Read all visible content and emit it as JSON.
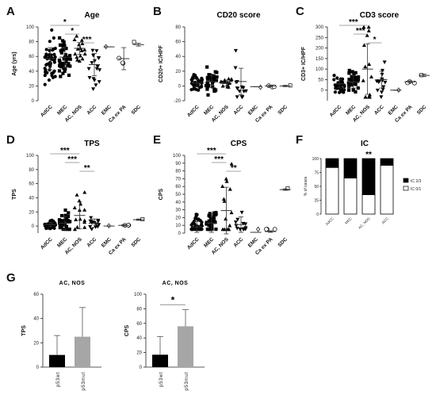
{
  "chart_data": [
    {
      "id": "A",
      "type": "scatter",
      "title": "Age",
      "ylabel": "Age (yrs)",
      "ylim": [
        0,
        100
      ],
      "yticks": [
        0,
        20,
        40,
        60,
        80,
        100
      ],
      "categories": [
        "AdCC",
        "MEC",
        "AC, NOS",
        "ACC",
        "EMC",
        "Ca ex PA",
        "SDC"
      ],
      "means": [
        57,
        59,
        71,
        49,
        73,
        57,
        76
      ],
      "sd": [
        15,
        14,
        8,
        15,
        0,
        15,
        2
      ],
      "n": [
        50,
        42,
        16,
        18,
        1,
        3,
        1
      ],
      "significance": [
        {
          "from": 0,
          "to": 2,
          "label": "*"
        },
        {
          "from": 1,
          "to": 2,
          "label": "*"
        },
        {
          "from": 2,
          "to": 3,
          "label": "***"
        }
      ]
    },
    {
      "id": "B",
      "type": "scatter",
      "title": "CD20 score",
      "ylabel": "CD20+ IC/HPF",
      "ylim": [
        -20,
        80
      ],
      "yticks": [
        -20,
        0,
        20,
        40,
        60,
        80
      ],
      "categories": [
        "AdCC",
        "MEC",
        "AC, NOS",
        "ACC",
        "EMC",
        "Ca ex PA",
        "SDC"
      ],
      "means": [
        4,
        6,
        4,
        6,
        -1,
        0,
        0
      ],
      "sd": [
        5,
        8,
        4,
        18,
        0,
        1,
        1
      ],
      "n": [
        40,
        34,
        14,
        14,
        1,
        3,
        1
      ],
      "significance": []
    },
    {
      "id": "C",
      "type": "scatter",
      "title": "CD3 score",
      "ylabel": "CD3+ IC/HPF",
      "ylim": [
        -50,
        300
      ],
      "yticks": [
        0,
        50,
        100,
        150,
        200,
        250,
        300
      ],
      "categories": [
        "AdCC",
        "MEC",
        "AC, NOS",
        "ACC",
        "EMC",
        "Ca ex PA",
        "SDC"
      ],
      "means": [
        30,
        40,
        100,
        50,
        0,
        40,
        70
      ],
      "sd": [
        20,
        30,
        120,
        40,
        0,
        4,
        6
      ],
      "n": [
        40,
        34,
        14,
        14,
        1,
        3,
        1
      ],
      "significance": [
        {
          "from": 0,
          "to": 2,
          "label": "***"
        },
        {
          "from": 1,
          "to": 2,
          "label": "***"
        },
        {
          "from": 2,
          "to": 3,
          "label": "*"
        }
      ]
    },
    {
      "id": "D",
      "type": "scatter",
      "title": "TPS",
      "ylabel": "TPS",
      "ylim": [
        -10,
        100
      ],
      "yticks": [
        0,
        20,
        40,
        60,
        80,
        100
      ],
      "categories": [
        "AdCC",
        "MEC",
        "AC, NOS",
        "ACC",
        "EMC",
        "Ca ex PA",
        "SDC"
      ],
      "means": [
        2,
        4,
        15,
        4,
        0,
        1,
        9
      ],
      "sd": [
        3,
        9,
        19,
        6,
        0,
        1,
        1
      ],
      "n": [
        40,
        34,
        14,
        14,
        1,
        3,
        1
      ],
      "significance": [
        {
          "from": 0,
          "to": 2,
          "label": "***"
        },
        {
          "from": 1,
          "to": 2,
          "label": "***"
        },
        {
          "from": 2,
          "to": 3,
          "label": "**"
        }
      ]
    },
    {
      "id": "E",
      "type": "scatter",
      "title": "CPS",
      "ylabel": "CPS",
      "ylim": [
        0,
        100
      ],
      "yticks": [
        0,
        10,
        20,
        30,
        40,
        50,
        60,
        70,
        80,
        90,
        100
      ],
      "categories": [
        "AdCC",
        "MEC",
        "AC, NOS",
        "ACC",
        "EMC",
        "Ca ex PA",
        "SDC"
      ],
      "means": [
        8,
        13,
        29,
        11,
        1,
        2,
        56
      ],
      "sd": [
        7,
        12,
        30,
        10,
        0,
        1,
        1
      ],
      "n": [
        40,
        34,
        14,
        14,
        1,
        3,
        1
      ],
      "significance": [
        {
          "from": 0,
          "to": 2,
          "label": "***"
        },
        {
          "from": 1,
          "to": 2,
          "label": "***"
        },
        {
          "from": 2,
          "to": 3,
          "label": "**"
        }
      ]
    },
    {
      "id": "F",
      "type": "bar",
      "stacked": true,
      "title": "IC",
      "ylabel": "% of cases",
      "ylim": [
        0,
        100
      ],
      "yticks": [
        0,
        25,
        50,
        75,
        100
      ],
      "categories": [
        "AdCC",
        "MEC",
        "AC, NOS",
        "ACC"
      ],
      "series": [
        {
          "name": "IC 0/1",
          "values": [
            84,
            65,
            35,
            88
          ],
          "color": "#ffffff"
        },
        {
          "name": "IC 2/3",
          "values": [
            16,
            35,
            65,
            12
          ],
          "color": "#000000"
        }
      ],
      "significance": [
        {
          "category": 2,
          "label": "**"
        }
      ]
    },
    {
      "id": "G1",
      "type": "bar",
      "title": "AC, NOS",
      "ylabel": "TPS",
      "ylim": [
        0,
        60
      ],
      "yticks": [
        0,
        20,
        40,
        60
      ],
      "categories": [
        "p53wt",
        "p53mut"
      ],
      "values": [
        10,
        25
      ],
      "errors": [
        16,
        24
      ],
      "colors": [
        "#000000",
        "#a6a6a6"
      ],
      "significance": []
    },
    {
      "id": "G2",
      "type": "bar",
      "title": "AC, NOS",
      "ylabel": "CPS",
      "ylim": [
        0,
        100
      ],
      "yticks": [
        0,
        20,
        40,
        60,
        80,
        100
      ],
      "categories": [
        "p53wt",
        "p53mut"
      ],
      "values": [
        17,
        56
      ],
      "errors": [
        25,
        23
      ],
      "colors": [
        "#000000",
        "#a6a6a6"
      ],
      "significance": [
        {
          "from": 0,
          "to": 1,
          "label": "*"
        }
      ]
    }
  ]
}
